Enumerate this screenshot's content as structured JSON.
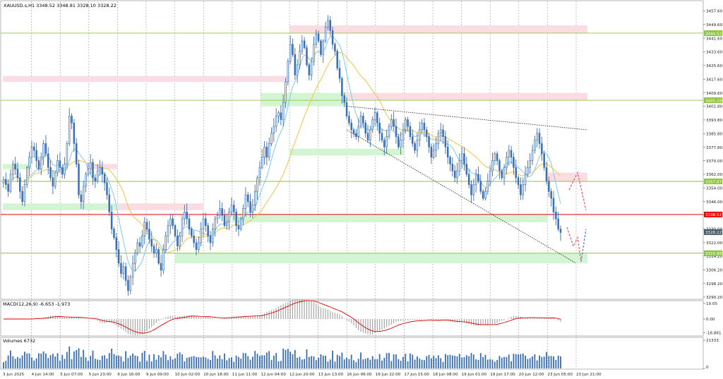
{
  "header": {
    "symbol_line": "XAUUSD.s,H1  3348.52 3348.81 3328.10 3328.22"
  },
  "price_axis": {
    "ticks": [
      "3457.60",
      "3449.60",
      "3441.60",
      "3433.60",
      "3425.60",
      "3417.60",
      "3409.60",
      "3401.80",
      "3393.80",
      "3385.80",
      "3377.80",
      "3370.00",
      "3362.00",
      "3354.00",
      "3346.00",
      "3338.00",
      "3330.00",
      "3322.00",
      "3314.20",
      "3306.20",
      "3298.20",
      "3290.20"
    ]
  },
  "price_labels": [
    {
      "text": "3444.52",
      "value": 3444.52,
      "color": "#8dc63f",
      "text_color": "#ffffff",
      "name": "resistance-3444-label"
    },
    {
      "text": "3405.29",
      "value": 3405.29,
      "color": "#8dc63f",
      "text_color": "#ffffff",
      "name": "resistance-3405-label"
    },
    {
      "text": "3357.87",
      "value": 3357.87,
      "color": "#8dc63f",
      "text_color": "#ffffff",
      "name": "level-3357-label"
    },
    {
      "text": "3338.52",
      "value": 3338.52,
      "color": "#ff0000",
      "text_color": "#ffffff",
      "name": "bid-price-label"
    },
    {
      "text": "3328.22",
      "value": 3328.22,
      "color": "#4a5a6a",
      "text_color": "#ffffff",
      "name": "last-price-label"
    },
    {
      "text": "3315.88",
      "value": 3315.88,
      "color": "#8dc63f",
      "text_color": "#ffffff",
      "name": "support-3315-label"
    }
  ],
  "time_axis": {
    "labels": [
      "3 Jun 2025",
      "4 Jun 14:00",
      "5 Jun 07:00",
      "5 Jun 23:00",
      "6 Jun 16:00",
      "9 Jun 09:00",
      "10 Jun 02:00",
      "10 Jun 18:00",
      "11 Jun 11:00",
      "12 Jun 04:00",
      "12 Jun 20:00",
      "13 Jun 13:00",
      "16 Jun 06:00",
      "16 Jun 22:00",
      "17 Jun 15:00",
      "18 Jun 08:00",
      "19 Jun 01:00",
      "19 Jun 17:00",
      "20 Jun 12:00",
      "23 Jun 05:00",
      "23 Jun 21:00"
    ]
  },
  "macd_panel": {
    "label": "MACD(12,26,9) -6.653 -1.973",
    "ticks": [
      "19.05",
      "0.00",
      "-16.861"
    ]
  },
  "volume_panel": {
    "label": "Volumes 6732",
    "ticks": [
      "21333",
      "0"
    ]
  },
  "colors": {
    "bull_candle": "#3b6fb6",
    "bear_candle": "#3b6fb6",
    "ma_fast": "#7ec8f0",
    "ma_slow": "#f5c242",
    "resistance_zone": "#fadde3",
    "support_zone": "#d3f5d3",
    "level_line": "#8dc63f",
    "bid_line": "#e00000",
    "macd_hist": "#a0a0a0",
    "macd_signal": "#e00000",
    "volume_bar": "#3b6fb6",
    "projection_down": "#ff4a6a",
    "projection_up": "#4a78c8"
  },
  "chart_data": {
    "type": "candlestick",
    "symbol": "XAUUSD.s",
    "timeframe": "H1",
    "header_ohlc": {
      "open": 3348.52,
      "high": 3348.81,
      "low": 3328.1,
      "close": 3328.22
    },
    "ylim": [
      3290.2,
      3460.6
    ],
    "key_levels": [
      {
        "value": 3444.52,
        "kind": "resistance"
      },
      {
        "value": 3405.29,
        "kind": "resistance"
      },
      {
        "value": 3357.87,
        "kind": "level"
      },
      {
        "value": 3338.52,
        "kind": "bid"
      },
      {
        "value": 3315.88,
        "kind": "support"
      }
    ],
    "resistance_zones": [
      {
        "x_start": "12 Jun 20:00",
        "x_end": "24 Jun",
        "y": [
          3444.5,
          3449.0
        ]
      },
      {
        "x_start": "3 Jun 2025",
        "x_end": "12 Jun 20:00",
        "y": [
          3416.0,
          3419.5
        ]
      },
      {
        "x_start": "16 Jun 06:00",
        "x_end": "24 Jun",
        "y": [
          3405.3,
          3409.6
        ]
      },
      {
        "x_start": "5 Jun 23:00",
        "x_end": "6 Jun 16:00",
        "y": [
          3365.0,
          3368.0
        ]
      },
      {
        "x_start": "6 Jun 16:00",
        "x_end": "10 Jun 18:00",
        "y": [
          3341.0,
          3345.0
        ]
      },
      {
        "x_start": "23 Jun 05:00",
        "x_end": "24 Jun",
        "y": [
          3358.0,
          3363.0
        ]
      }
    ],
    "support_zones": [
      {
        "x_start": "3 Jun 2025",
        "x_end": "6 Jun 16:00",
        "y": [
          3341.0,
          3345.0
        ]
      },
      {
        "x_start": "3 Jun 2025",
        "x_end": "4 Jun 14:00",
        "y": [
          3365.0,
          3368.0
        ]
      },
      {
        "x_start": "12 Jun 04:00",
        "x_end": "16 Jun 06:00",
        "y": [
          3401.8,
          3409.6
        ]
      },
      {
        "x_start": "12 Jun 20:00",
        "x_end": "17 Jun 15:00",
        "y": [
          3373.0,
          3377.0
        ]
      },
      {
        "x_start": "11 Jun 11:00",
        "x_end": "23 Jun 05:00",
        "y": [
          3334.0,
          3338.5
        ]
      },
      {
        "x_start": "10 Jun 02:00",
        "x_end": "24 Jun",
        "y": [
          3310.0,
          3315.9
        ]
      }
    ],
    "trendlines": [
      {
        "from": {
          "x": "16 Jun 06:00",
          "y": 3401.8
        },
        "to": {
          "x": "24 Jun",
          "y": 3388.0
        },
        "style": "dotted"
      },
      {
        "from": {
          "x": "16 Jun 06:00",
          "y": 3388.0
        },
        "to": {
          "x": "23 Jun 21:00",
          "y": 3310.0
        },
        "style": "dotted"
      }
    ],
    "projections": [
      {
        "color": "down",
        "points": [
          3353.0,
          3363.0,
          3341.0
        ]
      },
      {
        "color": "down",
        "points": [
          3331.0,
          3320.0,
          3325.0,
          3311.0
        ]
      },
      {
        "color": "up",
        "points": [
          3311.0,
          3330.0
        ]
      }
    ],
    "close_path": [
      3359,
      3356,
      3352,
      3362,
      3368,
      3365,
      3360,
      3352,
      3346,
      3356,
      3366,
      3372,
      3378,
      3376,
      3370,
      3365,
      3372,
      3380,
      3374,
      3366,
      3360,
      3355,
      3363,
      3370,
      3366,
      3362,
      3368,
      3380,
      3396,
      3392,
      3380,
      3368,
      3350,
      3346,
      3355,
      3362,
      3365,
      3369,
      3360,
      3358,
      3364,
      3366,
      3362,
      3357,
      3350,
      3340,
      3330,
      3325,
      3318,
      3310,
      3304,
      3308,
      3300,
      3294,
      3302,
      3310,
      3316,
      3322,
      3320,
      3326,
      3334,
      3330,
      3324,
      3320,
      3316,
      3318,
      3310,
      3306,
      3318,
      3326,
      3332,
      3336,
      3332,
      3326,
      3320,
      3326,
      3336,
      3340,
      3336,
      3330,
      3326,
      3322,
      3318,
      3322,
      3330,
      3336,
      3332,
      3326,
      3322,
      3330,
      3336,
      3338,
      3342,
      3338,
      3332,
      3334,
      3340,
      3344,
      3340,
      3332,
      3330,
      3336,
      3342,
      3350,
      3346,
      3340,
      3344,
      3352,
      3360,
      3366,
      3372,
      3378,
      3372,
      3380,
      3386,
      3390,
      3396,
      3398,
      3394,
      3404,
      3416,
      3428,
      3438,
      3432,
      3420,
      3426,
      3434,
      3440,
      3436,
      3426,
      3420,
      3428,
      3438,
      3444,
      3440,
      3432,
      3440,
      3448,
      3452,
      3446,
      3438,
      3434,
      3424,
      3418,
      3408,
      3404,
      3396,
      3392,
      3388,
      3386,
      3384,
      3390,
      3396,
      3392,
      3386,
      3382,
      3388,
      3394,
      3398,
      3392,
      3386,
      3382,
      3378,
      3384,
      3390,
      3394,
      3390,
      3384,
      3378,
      3382,
      3388,
      3394,
      3390,
      3384,
      3380,
      3376,
      3382,
      3388,
      3392,
      3388,
      3384,
      3378,
      3372,
      3376,
      3380,
      3386,
      3388,
      3384,
      3378,
      3372,
      3368,
      3364,
      3360,
      3364,
      3370,
      3374,
      3368,
      3362,
      3356,
      3350,
      3356,
      3362,
      3358,
      3352,
      3348,
      3352,
      3358,
      3364,
      3370,
      3374,
      3370,
      3364,
      3360,
      3366,
      3372,
      3376,
      3372,
      3366,
      3360,
      3356,
      3350,
      3356,
      3362,
      3366,
      3370,
      3376,
      3382,
      3386,
      3380,
      3374,
      3366,
      3358,
      3352,
      3348,
      3340,
      3336,
      3330,
      3328
    ]
  }
}
